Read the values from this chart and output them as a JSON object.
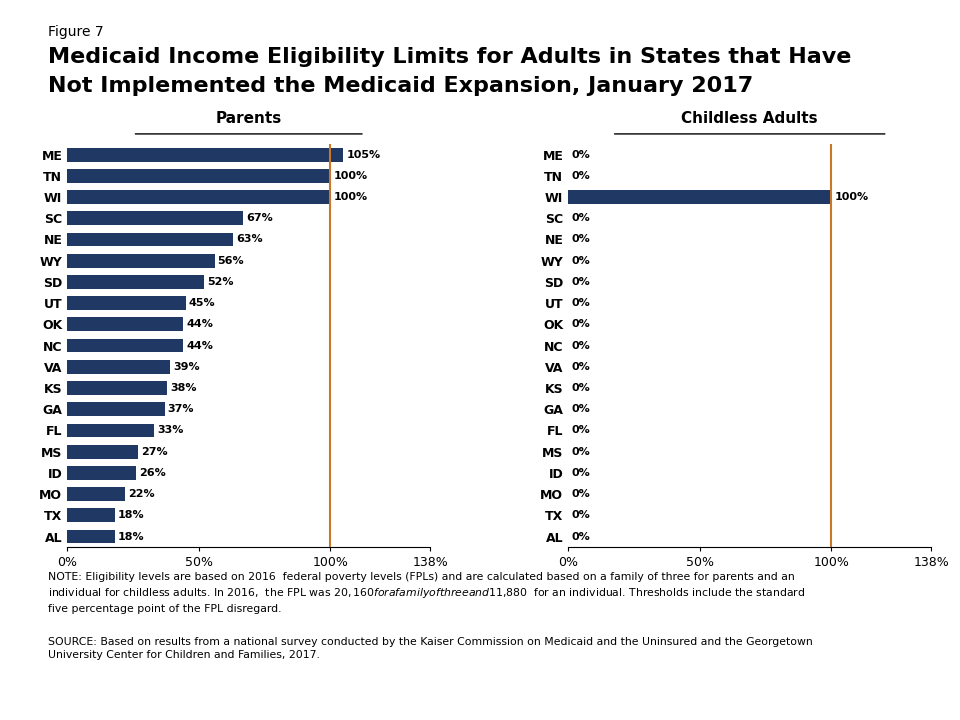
{
  "states": [
    "ME",
    "TN",
    "WI",
    "SC",
    "NE",
    "WY",
    "SD",
    "UT",
    "OK",
    "NC",
    "VA",
    "KS",
    "GA",
    "FL",
    "MS",
    "ID",
    "MO",
    "TX",
    "AL"
  ],
  "parents_values": [
    105,
    100,
    100,
    67,
    63,
    56,
    52,
    45,
    44,
    44,
    39,
    38,
    37,
    33,
    27,
    26,
    22,
    18,
    18
  ],
  "childless_values": [
    0,
    0,
    100,
    0,
    0,
    0,
    0,
    0,
    0,
    0,
    0,
    0,
    0,
    0,
    0,
    0,
    0,
    0,
    0
  ],
  "bar_color": "#1F3864",
  "vline_color": "#C9772A",
  "title_line1": "Medicaid Income Eligibility Limits for Adults in States that Have",
  "title_line2": "Not Implemented the Medicaid Expansion, January 2017",
  "figure_label": "Figure 7",
  "left_title": "Parents",
  "right_title": "Childless Adults",
  "xlim_max": 138,
  "xticks": [
    0,
    50,
    100,
    138
  ],
  "xtick_labels": [
    "0%",
    "50%",
    "100%",
    "138%"
  ],
  "vline_x": 100,
  "note_text": "NOTE: Eligibility levels are based on 2016  federal poverty levels (FPLs) and are calculated based on a family of three for parents and an\nindividual for childless adults. In 2016,  the FPL was $20,160  for a family of three and $11,880  for an individual. Thresholds include the standard\nfive percentage point of the FPL disregard.",
  "source_text": "SOURCE: Based on results from a national survey conducted by the Kaiser Commission on Medicaid and the Uninsured and the Georgetown\nUniversity Center for Children and Families, 2017.",
  "kaiser_box_color": "#1F3864"
}
